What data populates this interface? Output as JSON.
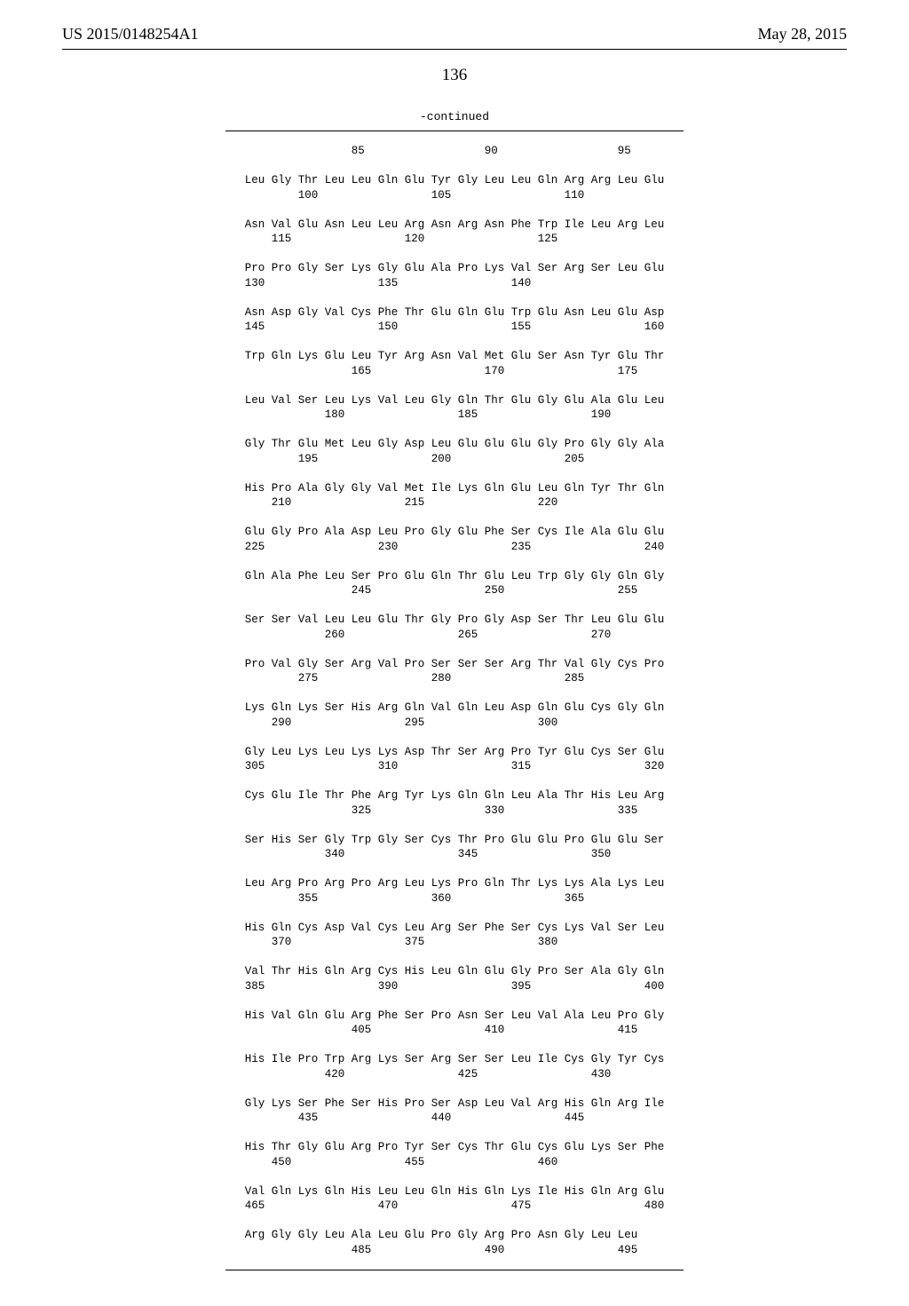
{
  "header": {
    "left": "US 2015/0148254A1",
    "right": "May 28, 2015"
  },
  "page_number": "136",
  "continued_label": "-continued",
  "sequence_lines": [
    "                85                  90                  95",
    "",
    "Leu Gly Thr Leu Leu Gln Glu Tyr Gly Leu Leu Gln Arg Arg Leu Glu",
    "        100                 105                 110",
    "",
    "Asn Val Glu Asn Leu Leu Arg Asn Arg Asn Phe Trp Ile Leu Arg Leu",
    "    115                 120                 125",
    "",
    "Pro Pro Gly Ser Lys Gly Glu Ala Pro Lys Val Ser Arg Ser Leu Glu",
    "130                 135                 140",
    "",
    "Asn Asp Gly Val Cys Phe Thr Glu Gln Glu Trp Glu Asn Leu Glu Asp",
    "145                 150                 155                 160",
    "",
    "Trp Gln Lys Glu Leu Tyr Arg Asn Val Met Glu Ser Asn Tyr Glu Thr",
    "                165                 170                 175",
    "",
    "Leu Val Ser Leu Lys Val Leu Gly Gln Thr Glu Gly Glu Ala Glu Leu",
    "            180                 185                 190",
    "",
    "Gly Thr Glu Met Leu Gly Asp Leu Glu Glu Glu Gly Pro Gly Gly Ala",
    "        195                 200                 205",
    "",
    "His Pro Ala Gly Gly Val Met Ile Lys Gln Glu Leu Gln Tyr Thr Gln",
    "    210                 215                 220",
    "",
    "Glu Gly Pro Ala Asp Leu Pro Gly Glu Phe Ser Cys Ile Ala Glu Glu",
    "225                 230                 235                 240",
    "",
    "Gln Ala Phe Leu Ser Pro Glu Gln Thr Glu Leu Trp Gly Gly Gln Gly",
    "                245                 250                 255",
    "",
    "Ser Ser Val Leu Leu Glu Thr Gly Pro Gly Asp Ser Thr Leu Glu Glu",
    "            260                 265                 270",
    "",
    "Pro Val Gly Ser Arg Val Pro Ser Ser Ser Arg Thr Val Gly Cys Pro",
    "        275                 280                 285",
    "",
    "Lys Gln Lys Ser His Arg Gln Val Gln Leu Asp Gln Glu Cys Gly Gln",
    "    290                 295                 300",
    "",
    "Gly Leu Lys Leu Lys Lys Asp Thr Ser Arg Pro Tyr Glu Cys Ser Glu",
    "305                 310                 315                 320",
    "",
    "Cys Glu Ile Thr Phe Arg Tyr Lys Gln Gln Leu Ala Thr His Leu Arg",
    "                325                 330                 335",
    "",
    "Ser His Ser Gly Trp Gly Ser Cys Thr Pro Glu Glu Pro Glu Glu Ser",
    "            340                 345                 350",
    "",
    "Leu Arg Pro Arg Pro Arg Leu Lys Pro Gln Thr Lys Lys Ala Lys Leu",
    "        355                 360                 365",
    "",
    "His Gln Cys Asp Val Cys Leu Arg Ser Phe Ser Cys Lys Val Ser Leu",
    "    370                 375                 380",
    "",
    "Val Thr His Gln Arg Cys His Leu Gln Glu Gly Pro Ser Ala Gly Gln",
    "385                 390                 395                 400",
    "",
    "His Val Gln Glu Arg Phe Ser Pro Asn Ser Leu Val Ala Leu Pro Gly",
    "                405                 410                 415",
    "",
    "His Ile Pro Trp Arg Lys Ser Arg Ser Ser Leu Ile Cys Gly Tyr Cys",
    "            420                 425                 430",
    "",
    "Gly Lys Ser Phe Ser His Pro Ser Asp Leu Val Arg His Gln Arg Ile",
    "        435                 440                 445",
    "",
    "His Thr Gly Glu Arg Pro Tyr Ser Cys Thr Glu Cys Glu Lys Ser Phe",
    "    450                 455                 460",
    "",
    "Val Gln Lys Gln His Leu Leu Gln His Gln Lys Ile His Gln Arg Glu",
    "465                 470                 475                 480",
    "",
    "Arg Gly Gly Leu Ala Leu Glu Pro Gly Arg Pro Asn Gly Leu Leu",
    "                485                 490                 495"
  ]
}
